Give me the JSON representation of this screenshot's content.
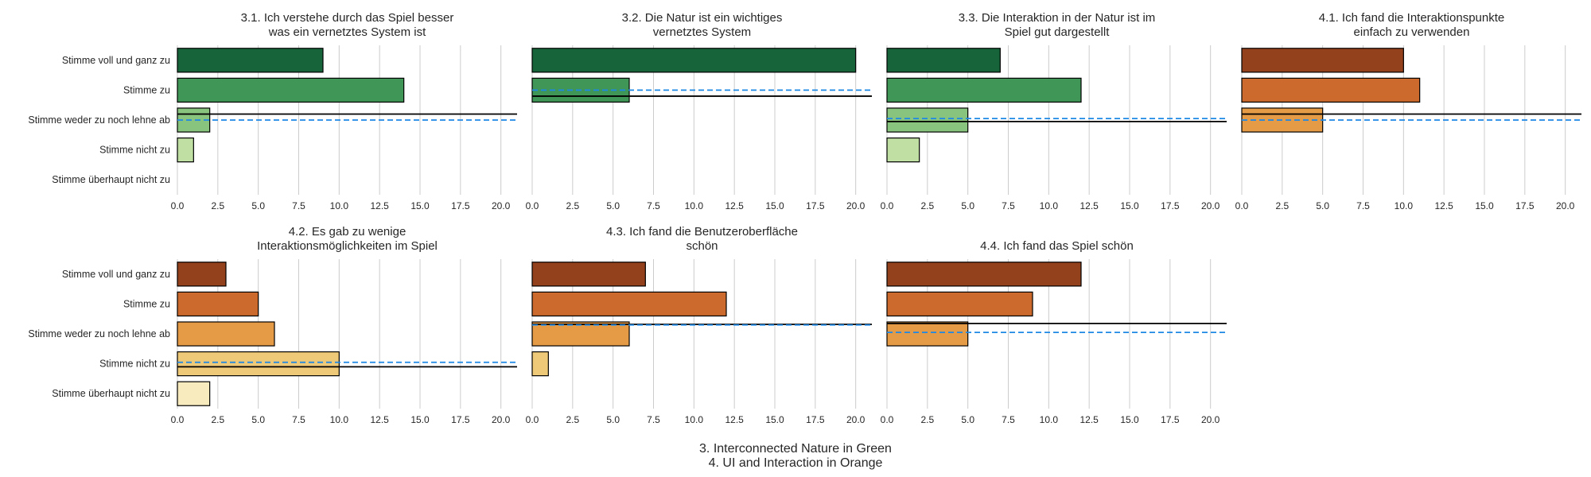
{
  "figure": {
    "caption_lines": [
      "3. Interconnected Nature in Green",
      "4. UI and Interaction in Orange"
    ]
  },
  "chart_data": [
    {
      "type": "bar",
      "orientation": "horizontal",
      "title": [
        "3.1. Ich verstehe durch das Spiel besser",
        "was ein vernetztes System ist"
      ],
      "categories": [
        "Stimme voll und ganz zu",
        "Stimme zu",
        "Stimme weder zu noch lehne ab",
        "Stimme nicht zu",
        "Stimme überhaupt nicht zu"
      ],
      "values": [
        9,
        14,
        2,
        1,
        0
      ],
      "colors": [
        "#17643a",
        "#3f9656",
        "#89c47f",
        "#c0e0a3",
        "#eef7e6"
      ],
      "reference_lines": {
        "black_solid_category_pos": 1.8,
        "blue_dashed_category_pos": 2.0
      },
      "xlim": [
        0,
        21
      ],
      "xticks": [
        0,
        2.5,
        5,
        7.5,
        10,
        12.5,
        15,
        17.5,
        20
      ],
      "grid": "vertical"
    },
    {
      "type": "bar",
      "orientation": "horizontal",
      "title": [
        "3.2. Die Natur ist ein wichtiges",
        "vernetztes System"
      ],
      "categories": [
        "Stimme voll und ganz zu",
        "Stimme zu",
        "Stimme weder zu noch lehne ab",
        "Stimme nicht zu",
        "Stimme überhaupt nicht zu"
      ],
      "values": [
        20,
        6,
        0,
        0,
        0
      ],
      "colors": [
        "#17643a",
        "#3f9656",
        "#89c47f",
        "#c0e0a3",
        "#eef7e6"
      ],
      "reference_lines": {
        "black_solid_category_pos": 1.2,
        "blue_dashed_category_pos": 1.0
      },
      "xlim": [
        0,
        21
      ],
      "xticks": [
        0,
        2.5,
        5,
        7.5,
        10,
        12.5,
        15,
        17.5,
        20
      ],
      "grid": "vertical"
    },
    {
      "type": "bar",
      "orientation": "horizontal",
      "title": [
        "3.3. Die Interaktion in der Natur ist im",
        "Spiel gut dargestellt"
      ],
      "categories": [
        "Stimme voll und ganz zu",
        "Stimme zu",
        "Stimme weder zu noch lehne ab",
        "Stimme nicht zu",
        "Stimme überhaupt nicht zu"
      ],
      "values": [
        7,
        12,
        5,
        2,
        0
      ],
      "colors": [
        "#17643a",
        "#3f9656",
        "#89c47f",
        "#c0e0a3",
        "#eef7e6"
      ],
      "reference_lines": {
        "black_solid_category_pos": 2.05,
        "blue_dashed_category_pos": 1.95
      },
      "xlim": [
        0,
        21
      ],
      "xticks": [
        0,
        2.5,
        5,
        7.5,
        10,
        12.5,
        15,
        17.5,
        20
      ],
      "grid": "vertical"
    },
    {
      "type": "bar",
      "orientation": "horizontal",
      "title": [
        "4.1. Ich fand die Interaktionspunkte",
        "einfach zu verwenden"
      ],
      "categories": [
        "Stimme voll und ganz zu",
        "Stimme zu",
        "Stimme weder zu noch lehne ab",
        "Stimme nicht zu",
        "Stimme überhaupt nicht zu"
      ],
      "values": [
        10,
        11,
        5,
        0,
        0
      ],
      "colors": [
        "#93401c",
        "#cb6a2c",
        "#e59a45",
        "#eec977",
        "#f8ebbd"
      ],
      "reference_lines": {
        "black_solid_category_pos": 1.8,
        "blue_dashed_category_pos": 2.0
      },
      "xlim": [
        0,
        21
      ],
      "xticks": [
        0,
        2.5,
        5,
        7.5,
        10,
        12.5,
        15,
        17.5,
        20
      ],
      "grid": "vertical"
    },
    {
      "type": "bar",
      "orientation": "horizontal",
      "title": [
        "4.2. Es gab zu wenige",
        "Interaktionsmöglichkeiten im Spiel"
      ],
      "categories": [
        "Stimme voll und ganz zu",
        "Stimme zu",
        "Stimme weder zu noch lehne ab",
        "Stimme nicht zu",
        "Stimme überhaupt nicht zu"
      ],
      "values": [
        3,
        5,
        6,
        10,
        2
      ],
      "colors": [
        "#93401c",
        "#cb6a2c",
        "#e59a45",
        "#eec977",
        "#f8ebbd"
      ],
      "reference_lines": {
        "black_solid_category_pos": 3.1,
        "blue_dashed_category_pos": 2.95
      },
      "xlim": [
        0,
        21
      ],
      "xticks": [
        0,
        2.5,
        5,
        7.5,
        10,
        12.5,
        15,
        17.5,
        20
      ],
      "grid": "vertical"
    },
    {
      "type": "bar",
      "orientation": "horizontal",
      "title": [
        "4.3. Ich fand die Benutzeroberfläche",
        "schön"
      ],
      "categories": [
        "Stimme voll und ganz zu",
        "Stimme zu",
        "Stimme weder zu noch lehne ab",
        "Stimme nicht zu",
        "Stimme überhaupt nicht zu"
      ],
      "values": [
        7,
        12,
        6,
        1,
        0
      ],
      "colors": [
        "#93401c",
        "#cb6a2c",
        "#e59a45",
        "#eec977",
        "#f8ebbd"
      ],
      "reference_lines": {
        "black_solid_category_pos": 1.68,
        "blue_dashed_category_pos": 1.7
      },
      "xlim": [
        0,
        21
      ],
      "xticks": [
        0,
        2.5,
        5,
        7.5,
        10,
        12.5,
        15,
        17.5,
        20
      ],
      "grid": "vertical"
    },
    {
      "type": "bar",
      "orientation": "horizontal",
      "title": [
        "4.4. Ich fand das Spiel schön"
      ],
      "categories": [
        "Stimme voll und ganz zu",
        "Stimme zu",
        "Stimme weder zu noch lehne ab",
        "Stimme nicht zu",
        "Stimme überhaupt nicht zu"
      ],
      "values": [
        12,
        9,
        5,
        0,
        0
      ],
      "colors": [
        "#93401c",
        "#cb6a2c",
        "#e59a45",
        "#eec977",
        "#f8ebbd"
      ],
      "reference_lines": {
        "black_solid_category_pos": 1.65,
        "blue_dashed_category_pos": 1.95
      },
      "xlim": [
        0,
        21
      ],
      "xticks": [
        0,
        2.5,
        5,
        7.5,
        10,
        12.5,
        15,
        17.5,
        20
      ],
      "grid": "vertical"
    }
  ]
}
